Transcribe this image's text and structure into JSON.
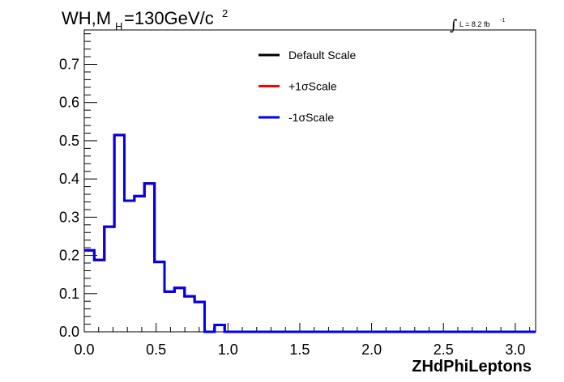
{
  "chart_data": {
    "type": "line",
    "title": {
      "main": "WH,M",
      "sub": "H",
      "after": "=130GeV/c",
      "sup": "2"
    },
    "lumi": {
      "integral": "∫",
      "text": "L = 8.2 fb",
      "sup": "-1"
    },
    "xlabel": "ZHdPhiLeptons",
    "ylabel": "",
    "xlim": [
      0,
      3.1416
    ],
    "ylim": [
      0,
      0.79
    ],
    "xticks": [
      "0.0",
      "0.5",
      "1.0",
      "1.5",
      "2.0",
      "2.5",
      "3.0"
    ],
    "yticks": [
      "0.0",
      "0.1",
      "0.2",
      "0.3",
      "0.4",
      "0.5",
      "0.6",
      "0.7"
    ],
    "bin_width": 0.0698,
    "series": [
      {
        "name": "Default Scale",
        "color": "#000000",
        "values": [
          0.213,
          0.188,
          0.275,
          0.515,
          0.343,
          0.355,
          0.388,
          0.183,
          0.105,
          0.115,
          0.093,
          0.078,
          0.0,
          0.018,
          0,
          0,
          0,
          0,
          0,
          0,
          0,
          0,
          0,
          0,
          0,
          0,
          0,
          0,
          0,
          0,
          0,
          0,
          0,
          0,
          0,
          0,
          0,
          0,
          0,
          0,
          0,
          0,
          0,
          0,
          0
        ]
      },
      {
        "name": "+1σScale",
        "color": "#ff0000",
        "values": [
          0.213,
          0.188,
          0.275,
          0.515,
          0.343,
          0.355,
          0.388,
          0.183,
          0.105,
          0.115,
          0.093,
          0.078,
          0.0,
          0.018,
          0,
          0,
          0,
          0,
          0,
          0,
          0,
          0,
          0,
          0,
          0,
          0,
          0,
          0,
          0,
          0,
          0,
          0,
          0,
          0,
          0,
          0,
          0,
          0,
          0,
          0,
          0,
          0,
          0,
          0,
          0
        ]
      },
      {
        "name": "-1σScale",
        "color": "#0000ee",
        "values": [
          0.213,
          0.188,
          0.275,
          0.515,
          0.343,
          0.355,
          0.388,
          0.183,
          0.105,
          0.115,
          0.093,
          0.078,
          0.0,
          0.018,
          0,
          0,
          0,
          0,
          0,
          0,
          0,
          0,
          0,
          0,
          0,
          0,
          0,
          0,
          0,
          0,
          0,
          0,
          0,
          0,
          0,
          0,
          0,
          0,
          0,
          0,
          0,
          0,
          0,
          0,
          0
        ]
      }
    ],
    "legend_position": "top-center",
    "grid": false
  }
}
